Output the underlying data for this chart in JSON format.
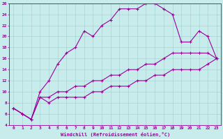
{
  "xlabel": "Windchill (Refroidissement éolien,°C)",
  "bg_color": "#c8ecec",
  "grid_color": "#a8d4d4",
  "line_color": "#990099",
  "xlim": [
    -0.5,
    23.5
  ],
  "ylim": [
    4,
    26
  ],
  "xticks": [
    0,
    1,
    2,
    3,
    4,
    5,
    6,
    7,
    8,
    9,
    10,
    11,
    12,
    13,
    14,
    15,
    16,
    17,
    18,
    19,
    20,
    21,
    22,
    23
  ],
  "yticks": [
    4,
    6,
    8,
    10,
    12,
    14,
    16,
    18,
    20,
    22,
    24,
    26
  ],
  "line1_x": [
    0,
    1,
    2,
    3,
    4,
    5,
    6,
    7,
    8,
    9,
    10,
    11,
    12,
    13,
    14,
    15,
    16,
    17,
    18,
    19,
    20,
    21,
    22,
    23
  ],
  "line1_y": [
    7,
    6,
    5,
    10,
    12,
    15,
    17,
    18,
    21,
    20,
    22,
    23,
    25,
    25,
    25,
    26,
    26,
    25,
    24,
    19,
    19,
    21,
    20,
    16
  ],
  "line2_x": [
    0,
    1,
    2,
    3,
    4,
    5,
    6,
    7,
    8,
    9,
    10,
    11,
    12,
    13,
    14,
    15,
    16,
    17,
    18,
    19,
    20,
    21,
    22,
    23
  ],
  "line2_y": [
    7,
    6,
    5,
    9,
    9,
    10,
    10,
    11,
    11,
    12,
    12,
    13,
    13,
    14,
    14,
    15,
    15,
    16,
    17,
    17,
    17,
    17,
    17,
    16
  ],
  "line3_x": [
    0,
    1,
    2,
    3,
    4,
    5,
    6,
    7,
    8,
    9,
    10,
    11,
    12,
    13,
    14,
    15,
    16,
    17,
    18,
    19,
    20,
    21,
    22,
    23
  ],
  "line3_y": [
    7,
    6,
    5,
    9,
    8,
    9,
    9,
    9,
    9,
    10,
    10,
    11,
    11,
    11,
    12,
    12,
    13,
    13,
    14,
    14,
    14,
    14,
    15,
    16
  ]
}
